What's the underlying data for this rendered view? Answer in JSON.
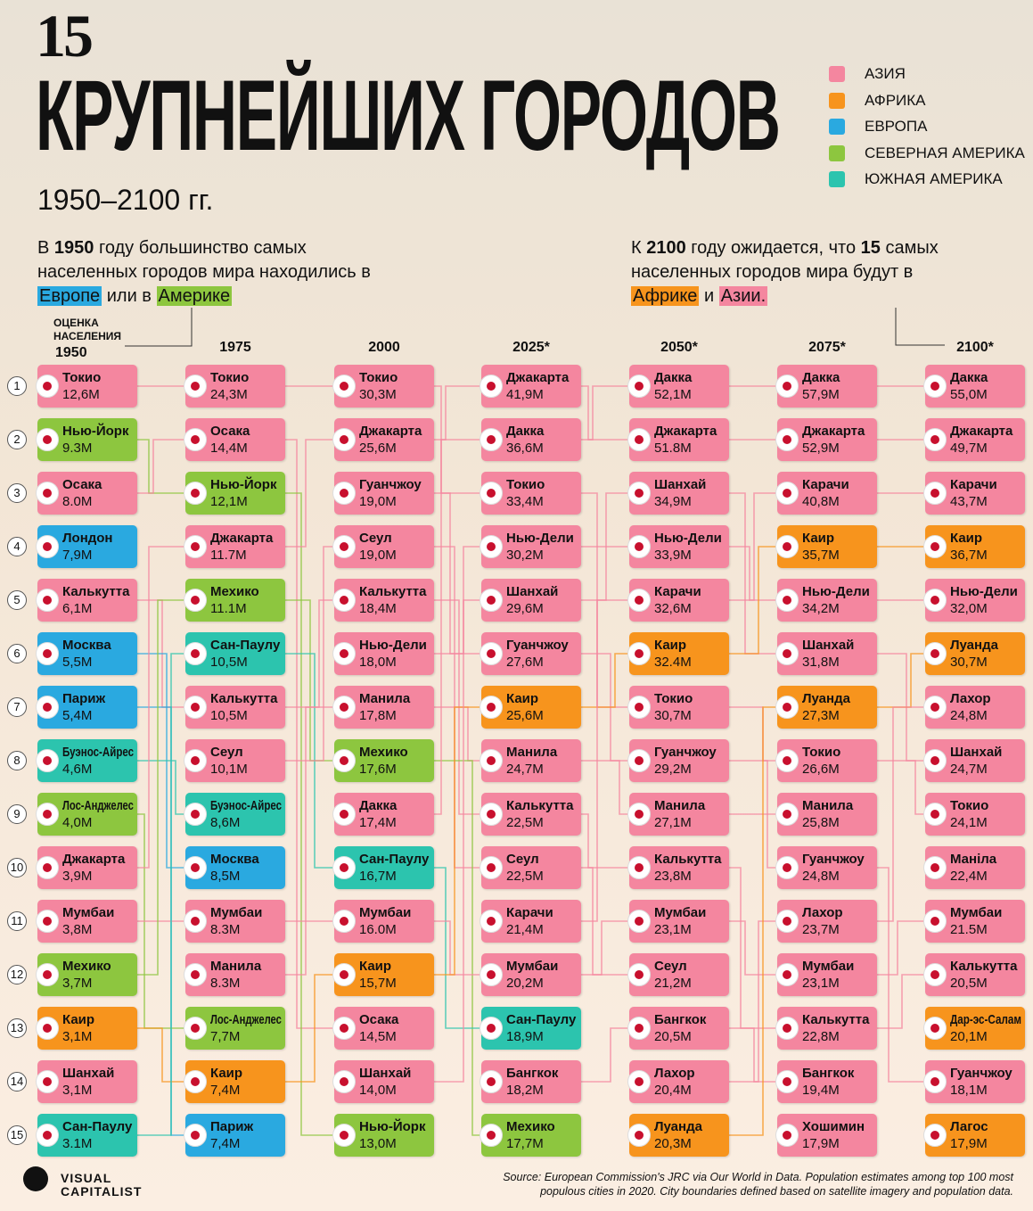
{
  "header": {
    "number": "15",
    "title": "КРУПНЕЙШИХ ГОРОДОВ",
    "subtitle": "1950–2100 гг."
  },
  "legend": [
    {
      "label": "АЗИЯ",
      "color": "#f4869f"
    },
    {
      "label": "АФРИКА",
      "color": "#f7941d"
    },
    {
      "label": "ЕВРОПА",
      "color": "#2aa9e0"
    },
    {
      "label": "СЕВЕРНАЯ АМЕРИКА",
      "color": "#8dc63f"
    },
    {
      "label": "ЮЖНАЯ АМЕРИКА",
      "color": "#2cc4ae"
    }
  ],
  "intro_left": {
    "start": "В",
    "year": "1950",
    "middle": "году большинство самых населенных городов мира находились в",
    "region1": "Европе",
    "between": "или в",
    "region2": "Америке"
  },
  "intro_right": {
    "start": "К",
    "year": "2100",
    "middle": "году ожидается, что",
    "count": "15",
    "end": "самых населенных городов мира будут в",
    "region1": "Африке",
    "between": "и",
    "region2": "Азии."
  },
  "estimate_label": "ОЦЕНКА НАСЕЛЕНИЯ",
  "ranks": [
    1,
    2,
    3,
    4,
    5,
    6,
    7,
    8,
    9,
    10,
    11,
    12,
    13,
    14,
    15
  ],
  "columns": [
    {
      "year": "1950",
      "cities": [
        [
          "Токио",
          "12,6M",
          "#f4869f"
        ],
        [
          "Нью-Йорк",
          "9.3M",
          "#8dc63f"
        ],
        [
          "Осака",
          "8.0M",
          "#f4869f"
        ],
        [
          "Лондон",
          "7,9M",
          "#2aa9e0"
        ],
        [
          "Калькутта",
          "6,1M",
          "#f4869f"
        ],
        [
          "Москва",
          "5,5M",
          "#2aa9e0"
        ],
        [
          "Париж",
          "5,4M",
          "#2aa9e0"
        ],
        [
          "Буэнос-Айрес",
          "4,6M",
          "#2cc4ae"
        ],
        [
          "Лос-Анджелес",
          "4,0M",
          "#8dc63f"
        ],
        [
          "Джакарта",
          "3,9M",
          "#f4869f"
        ],
        [
          "Мумбаи",
          "3,8M",
          "#f4869f"
        ],
        [
          "Мехико",
          "3,7M",
          "#8dc63f"
        ],
        [
          "Каир",
          "3,1M",
          "#f7941d"
        ],
        [
          "Шанхай",
          "3,1M",
          "#f4869f"
        ],
        [
          "Сан-Паулу",
          "3.1M",
          "#2cc4ae"
        ]
      ]
    },
    {
      "year": "1975",
      "cities": [
        [
          "Токио",
          "24,3M",
          "#f4869f"
        ],
        [
          "Осака",
          "14,4M",
          "#f4869f"
        ],
        [
          "Нью-Йорк",
          "12,1M",
          "#8dc63f"
        ],
        [
          "Джакарта",
          "11.7M",
          "#f4869f"
        ],
        [
          "Мехико",
          "11.1M",
          "#8dc63f"
        ],
        [
          "Сан-Паулу",
          "10,5M",
          "#2cc4ae"
        ],
        [
          "Калькутта",
          "10,5M",
          "#f4869f"
        ],
        [
          "Сеул",
          "10,1M",
          "#f4869f"
        ],
        [
          "Буэнос-Айрес",
          "8,6M",
          "#2cc4ae"
        ],
        [
          "Москва",
          "8,5M",
          "#2aa9e0"
        ],
        [
          "Мумбаи",
          "8.3M",
          "#f4869f"
        ],
        [
          "Манила",
          "8.3M",
          "#f4869f"
        ],
        [
          "Лос-Анджелес",
          "7,7M",
          "#8dc63f"
        ],
        [
          "Каир",
          "7,4M",
          "#f7941d"
        ],
        [
          "Париж",
          "7,4M",
          "#2aa9e0"
        ]
      ]
    },
    {
      "year": "2000",
      "cities": [
        [
          "Токио",
          "30,3M",
          "#f4869f"
        ],
        [
          "Джакарта",
          "25,6M",
          "#f4869f"
        ],
        [
          "Гуанчжоу",
          "19,0M",
          "#f4869f"
        ],
        [
          "Сеул",
          "19,0M",
          "#f4869f"
        ],
        [
          "Калькутта",
          "18,4M",
          "#f4869f"
        ],
        [
          "Нью-Дели",
          "18,0M",
          "#f4869f"
        ],
        [
          "Манила",
          "17,8M",
          "#f4869f"
        ],
        [
          "Мехико",
          "17,6M",
          "#8dc63f"
        ],
        [
          "Дакка",
          "17,4M",
          "#f4869f"
        ],
        [
          "Сан-Паулу",
          "16,7M",
          "#2cc4ae"
        ],
        [
          "Мумбаи",
          "16.0M",
          "#f4869f"
        ],
        [
          "Каир",
          "15,7M",
          "#f7941d"
        ],
        [
          "Осака",
          "14,5M",
          "#f4869f"
        ],
        [
          "Шанхай",
          "14,0M",
          "#f4869f"
        ],
        [
          "Нью-Йорк",
          "13,0M",
          "#8dc63f"
        ]
      ]
    },
    {
      "year": "2025*",
      "cities": [
        [
          "Джакарта",
          "41,9M",
          "#f4869f"
        ],
        [
          "Дакка",
          "36,6M",
          "#f4869f"
        ],
        [
          "Токио",
          "33,4M",
          "#f4869f"
        ],
        [
          "Нью-Дели",
          "30,2M",
          "#f4869f"
        ],
        [
          "Шанхай",
          "29,6M",
          "#f4869f"
        ],
        [
          "Гуанчжоу",
          "27,6M",
          "#f4869f"
        ],
        [
          "Каир",
          "25,6M",
          "#f7941d"
        ],
        [
          "Манила",
          "24,7M",
          "#f4869f"
        ],
        [
          "Калькутта",
          "22,5M",
          "#f4869f"
        ],
        [
          "Сеул",
          "22,5M",
          "#f4869f"
        ],
        [
          "Карачи",
          "21,4M",
          "#f4869f"
        ],
        [
          "Мумбаи",
          "20,2M",
          "#f4869f"
        ],
        [
          "Сан-Паулу",
          "18,9M",
          "#2cc4ae"
        ],
        [
          "Бангкок",
          "18,2M",
          "#f4869f"
        ],
        [
          "Мехико",
          "17,7M",
          "#8dc63f"
        ]
      ]
    },
    {
      "year": "2050*",
      "cities": [
        [
          "Дакка",
          "52,1M",
          "#f4869f"
        ],
        [
          "Джакарта",
          "51.8M",
          "#f4869f"
        ],
        [
          "Шанхай",
          "34,9M",
          "#f4869f"
        ],
        [
          "Нью-Дели",
          "33,9M",
          "#f4869f"
        ],
        [
          "Карачи",
          "32,6M",
          "#f4869f"
        ],
        [
          "Каир",
          "32.4M",
          "#f7941d"
        ],
        [
          "Токио",
          "30,7M",
          "#f4869f"
        ],
        [
          "Гуанчжоу",
          "29,2M",
          "#f4869f"
        ],
        [
          "Манила",
          "27,1M",
          "#f4869f"
        ],
        [
          "Калькутта",
          "23,8M",
          "#f4869f"
        ],
        [
          "Мумбаи",
          "23,1M",
          "#f4869f"
        ],
        [
          "Сеул",
          "21,2M",
          "#f4869f"
        ],
        [
          "Бангкок",
          "20,5M",
          "#f4869f"
        ],
        [
          "Лахор",
          "20,4M",
          "#f4869f"
        ],
        [
          "Луанда",
          "20,3M",
          "#f7941d"
        ]
      ]
    },
    {
      "year": "2075*",
      "cities": [
        [
          "Дакка",
          "57,9M",
          "#f4869f"
        ],
        [
          "Джакарта",
          "52,9M",
          "#f4869f"
        ],
        [
          "Карачи",
          "40,8M",
          "#f4869f"
        ],
        [
          "Каир",
          "35,7M",
          "#f7941d"
        ],
        [
          "Нью-Дели",
          "34,2M",
          "#f4869f"
        ],
        [
          "Шанхай",
          "31,8M",
          "#f4869f"
        ],
        [
          "Луанда",
          "27,3M",
          "#f7941d"
        ],
        [
          "Токио",
          "26,6M",
          "#f4869f"
        ],
        [
          "Манила",
          "25,8M",
          "#f4869f"
        ],
        [
          "Гуанчжоу",
          "24,8M",
          "#f4869f"
        ],
        [
          "Лахор",
          "23,7M",
          "#f4869f"
        ],
        [
          "Мумбаи",
          "23,1M",
          "#f4869f"
        ],
        [
          "Калькутта",
          "22,8M",
          "#f4869f"
        ],
        [
          "Бангкок",
          "19,4M",
          "#f4869f"
        ],
        [
          "Хошимин",
          "17,9M",
          "#f4869f"
        ]
      ]
    },
    {
      "year": "2100*",
      "cities": [
        [
          "Дакка",
          "55,0M",
          "#f4869f"
        ],
        [
          "Джакарта",
          "49,7M",
          "#f4869f"
        ],
        [
          "Карачи",
          "43,7M",
          "#f4869f"
        ],
        [
          "Каир",
          "36,7M",
          "#f7941d"
        ],
        [
          "Нью-Дели",
          "32,0M",
          "#f4869f"
        ],
        [
          "Луанда",
          "30,7M",
          "#f7941d"
        ],
        [
          "Лахор",
          "24,8M",
          "#f4869f"
        ],
        [
          "Шанхай",
          "24,7M",
          "#f4869f"
        ],
        [
          "Токио",
          "24,1M",
          "#f4869f"
        ],
        [
          "Маніла",
          "22,4M",
          "#f4869f"
        ],
        [
          "Мумбаи",
          "21.5M",
          "#f4869f"
        ],
        [
          "Калькутта",
          "20,5M",
          "#f4869f"
        ],
        [
          "Дар-эс-Салам",
          "20,1M",
          "#f7941d"
        ],
        [
          "Гуанчжоу",
          "18,1M",
          "#f4869f"
        ],
        [
          "Лагос",
          "17,9M",
          "#f7941d"
        ]
      ]
    }
  ],
  "source": "Source: European Commission's JRC via Our World in Data. Population estimates among top 100 most populous cities in 2020. City boundaries defined based on satellite imagery and population data.",
  "logo": "VISUAL CAPITALIST"
}
